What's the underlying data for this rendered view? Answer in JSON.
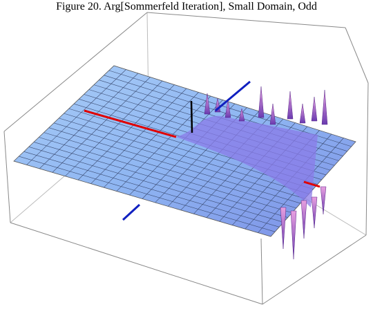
{
  "figure": {
    "title": "Figure 20. Arg[Sommerfeld Iteration], Small Domain, Odd"
  }
}
